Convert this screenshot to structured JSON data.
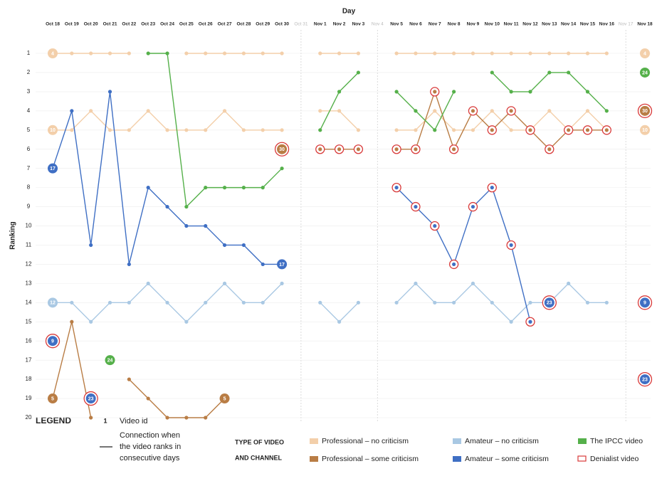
{
  "chart_data": {
    "type": "line",
    "x_label": "Day",
    "y_label": "Ranking",
    "categories": [
      "Oct 18",
      "Oct 19",
      "Oct 20",
      "Oct 21",
      "Oct 22",
      "Oct 23",
      "Oct 24",
      "Oct 25",
      "Oct 26",
      "Oct 27",
      "Oct 28",
      "Oct 29",
      "Oct 30",
      "Oct 31",
      "Nov 1",
      "Nov 2",
      "Nov 3",
      "Nov 4",
      "Nov 5",
      "Nov 6",
      "Nov 7",
      "Nov 8",
      "Nov 9",
      "Nov 10",
      "Nov 11",
      "Nov 12",
      "Nov 13",
      "Nov 14",
      "Nov 15",
      "Nov 16",
      "Nov 17",
      "Nov 18"
    ],
    "dimmed_categories": [
      13,
      17,
      30
    ],
    "ylim": [
      20,
      1
    ],
    "yticks": [
      1,
      2,
      3,
      4,
      5,
      6,
      7,
      8,
      9,
      10,
      11,
      12,
      13,
      14,
      15,
      16,
      17,
      18,
      19,
      20
    ],
    "types": [
      {
        "name": "Professional – no criticism",
        "color": "#f3cfaa"
      },
      {
        "name": "Professional – some criticism",
        "color": "#b97d45"
      },
      {
        "name": "Amateur – no criticism",
        "color": "#a9c8e3"
      },
      {
        "name": "Amateur – some criticism",
        "color": "#3f6fc4"
      },
      {
        "name": "The IPCC video",
        "color": "#55b04a"
      }
    ],
    "denialist": {
      "name": "Denialist video",
      "color": "#d93a3a"
    },
    "series": [
      {
        "name": "4",
        "type": 0,
        "denialist": false,
        "values": [
          1,
          1,
          1,
          1,
          1,
          null,
          null,
          1,
          1,
          1,
          1,
          1,
          1,
          null,
          1,
          1,
          1,
          null,
          1,
          1,
          1,
          1,
          1,
          1,
          1,
          1,
          1,
          1,
          1,
          1,
          null,
          1
        ]
      },
      {
        "name": "10",
        "type": 0,
        "denialist": false,
        "values": [
          5,
          5,
          4,
          5,
          5,
          4,
          5,
          5,
          5,
          4,
          5,
          5,
          5,
          null,
          4,
          4,
          5,
          null,
          5,
          5,
          4,
          5,
          5,
          4,
          5,
          5,
          4,
          5,
          4,
          5,
          null,
          5
        ]
      },
      {
        "name": "12",
        "type": 2,
        "denialist": false,
        "values": [
          14,
          14,
          15,
          14,
          14,
          13,
          14,
          15,
          14,
          13,
          14,
          14,
          13,
          null,
          14,
          15,
          14,
          null,
          14,
          13,
          14,
          14,
          13,
          14,
          15,
          14,
          14,
          13,
          14,
          14,
          null,
          14
        ]
      },
      {
        "name": "5",
        "type": 1,
        "denialist": false,
        "values": [
          19,
          15,
          20,
          null,
          18,
          19,
          20,
          20,
          20,
          19,
          null,
          null,
          null,
          null,
          null,
          null,
          null,
          null,
          null,
          null,
          null,
          null,
          null,
          null,
          null,
          null,
          null,
          null,
          null,
          null,
          null,
          null
        ]
      },
      {
        "name": "17",
        "type": 3,
        "denialist": false,
        "values": [
          7,
          4,
          11,
          3,
          12,
          8,
          9,
          10,
          10,
          11,
          11,
          12,
          12,
          null,
          null,
          null,
          null,
          null,
          null,
          null,
          null,
          null,
          null,
          null,
          null,
          null,
          null,
          null,
          null,
          null,
          null,
          null
        ]
      },
      {
        "name": "9",
        "type": 3,
        "denialist": true,
        "values": [
          16,
          null,
          null,
          null,
          null,
          null,
          null,
          null,
          null,
          null,
          null,
          null,
          null,
          null,
          null,
          null,
          null,
          null,
          8,
          9,
          10,
          12,
          9,
          8,
          11,
          15,
          null,
          null,
          null,
          null,
          null,
          14
        ]
      },
      {
        "name": "23",
        "type": 3,
        "denialist": true,
        "values": [
          null,
          null,
          19,
          null,
          null,
          null,
          null,
          null,
          null,
          null,
          null,
          null,
          null,
          null,
          null,
          null,
          null,
          null,
          null,
          null,
          null,
          null,
          null,
          null,
          null,
          null,
          14,
          null,
          null,
          null,
          null,
          18
        ]
      },
      {
        "name": "30",
        "type": 1,
        "denialist": true,
        "values": [
          null,
          null,
          null,
          null,
          null,
          null,
          null,
          null,
          null,
          null,
          null,
          null,
          6,
          null,
          6,
          6,
          6,
          null,
          6,
          6,
          3,
          6,
          4,
          5,
          4,
          5,
          6,
          5,
          5,
          5,
          null,
          4
        ]
      },
      {
        "name": "24",
        "type": 4,
        "denialist": false,
        "values": [
          null,
          null,
          null,
          17,
          null,
          1,
          1,
          9,
          8,
          8,
          8,
          8,
          7,
          null,
          5,
          3,
          2,
          null,
          3,
          4,
          5,
          3,
          null,
          2,
          3,
          3,
          2,
          2,
          3,
          4,
          null,
          2
        ]
      }
    ],
    "legend": {
      "title": "LEGEND",
      "id_sample": "1",
      "id_label": "Video id",
      "connection": [
        "Connection when",
        "the video ranks in",
        "consecutive days"
      ],
      "type_title": [
        "TYPE OF VIDEO",
        "AND CHANNEL"
      ]
    }
  }
}
